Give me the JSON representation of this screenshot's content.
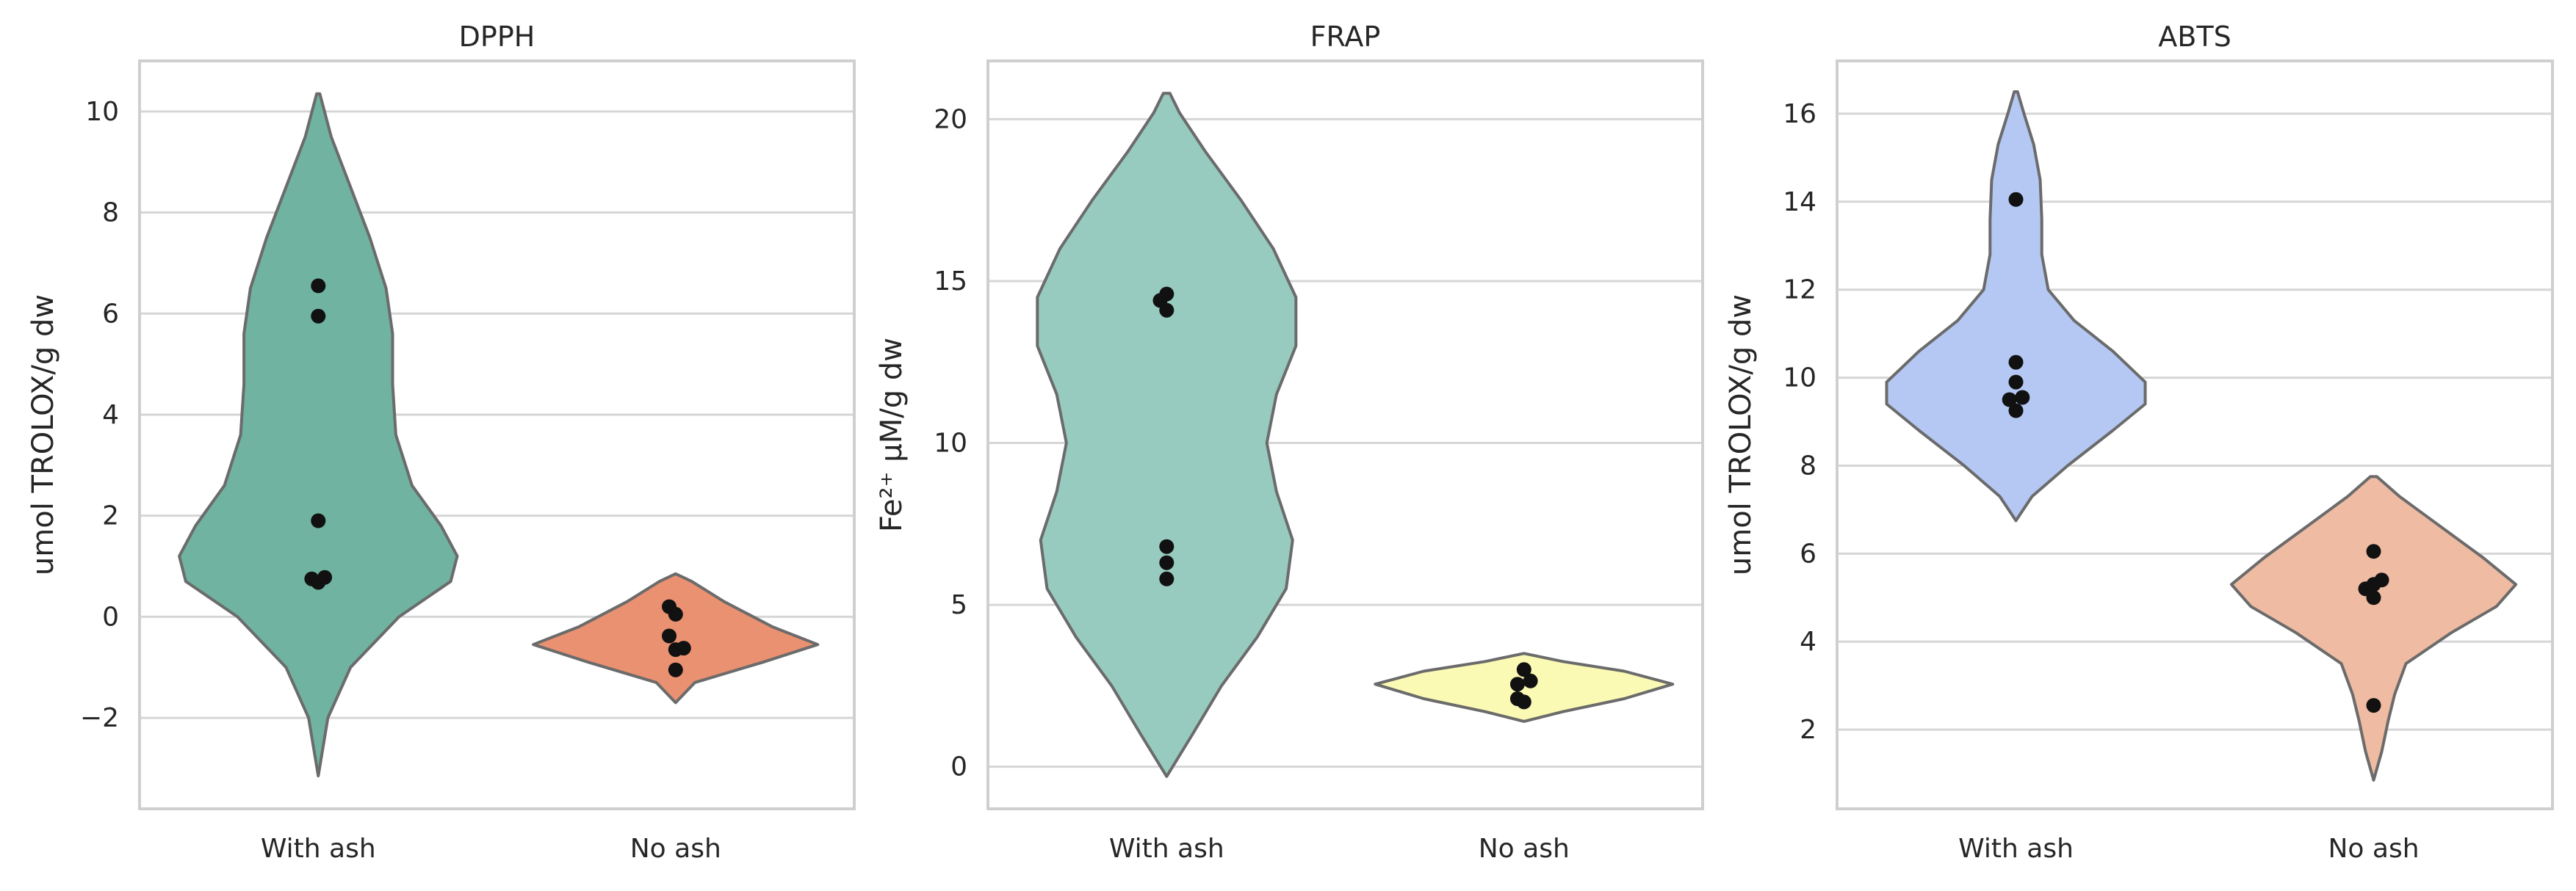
{
  "chart_data": [
    {
      "type": "violin",
      "title": "DPPH",
      "xlabel": "",
      "ylabel": "umol TROLOX/g dw",
      "categories": [
        "With ash",
        "No ash"
      ],
      "ylim": [
        -3.8,
        11.0
      ],
      "yticks": [
        -2,
        0,
        2,
        4,
        6,
        8,
        10
      ],
      "ytick_labels": [
        "−2",
        "0",
        "2",
        "4",
        "6",
        "8",
        "10"
      ],
      "grid": true,
      "colors": [
        "#6fb3a0",
        "#e99170"
      ],
      "violins": [
        {
          "category": "With ash",
          "min": -3.15,
          "max": 10.35,
          "profile": [
            [
              -3.15,
              0.0
            ],
            [
              -2.0,
              0.06
            ],
            [
              -1.0,
              0.2
            ],
            [
              0.0,
              0.5
            ],
            [
              0.7,
              0.82
            ],
            [
              1.2,
              0.86
            ],
            [
              1.8,
              0.76
            ],
            [
              2.6,
              0.58
            ],
            [
              3.6,
              0.48
            ],
            [
              4.6,
              0.46
            ],
            [
              5.6,
              0.46
            ],
            [
              6.5,
              0.42
            ],
            [
              7.5,
              0.32
            ],
            [
              8.5,
              0.2
            ],
            [
              9.5,
              0.08
            ],
            [
              10.35,
              0.01
            ]
          ]
        },
        {
          "category": "No ash",
          "min": -1.7,
          "max": 0.85,
          "profile": [
            [
              -1.7,
              0.0
            ],
            [
              -1.3,
              0.12
            ],
            [
              -0.9,
              0.54
            ],
            [
              -0.55,
              0.88
            ],
            [
              -0.2,
              0.6
            ],
            [
              0.3,
              0.3
            ],
            [
              0.7,
              0.1
            ],
            [
              0.85,
              0.0
            ]
          ]
        }
      ],
      "points": [
        {
          "category": "With ash",
          "y": 6.55,
          "dx": 0.0
        },
        {
          "category": "With ash",
          "y": 5.95,
          "dx": 0.0
        },
        {
          "category": "With ash",
          "y": 1.9,
          "dx": 0.0
        },
        {
          "category": "With ash",
          "y": 0.75,
          "dx": -0.04
        },
        {
          "category": "With ash",
          "y": 0.68,
          "dx": 0.0
        },
        {
          "category": "With ash",
          "y": 0.78,
          "dx": 0.04
        },
        {
          "category": "No ash",
          "y": 0.2,
          "dx": -0.04
        },
        {
          "category": "No ash",
          "y": 0.05,
          "dx": 0.0
        },
        {
          "category": "No ash",
          "y": -0.38,
          "dx": -0.04
        },
        {
          "category": "No ash",
          "y": -0.65,
          "dx": 0.0
        },
        {
          "category": "No ash",
          "y": -0.62,
          "dx": 0.05
        },
        {
          "category": "No ash",
          "y": -1.05,
          "dx": 0.0
        }
      ]
    },
    {
      "type": "violin",
      "title": "FRAP",
      "xlabel": "",
      "ylabel": "Fe²⁺ μM/g dw",
      "categories": [
        "With ash",
        "No ash"
      ],
      "ylim": [
        -1.3,
        21.8
      ],
      "yticks": [
        0,
        5,
        10,
        15,
        20
      ],
      "ytick_labels": [
        "0",
        "5",
        "10",
        "15",
        "20"
      ],
      "grid": true,
      "colors": [
        "#97cbc0",
        "#fbfab4"
      ],
      "violins": [
        {
          "category": "With ash",
          "min": -0.3,
          "max": 20.8,
          "profile": [
            [
              -0.3,
              0.0
            ],
            [
              1.0,
              0.16
            ],
            [
              2.5,
              0.34
            ],
            [
              4.0,
              0.56
            ],
            [
              5.5,
              0.74
            ],
            [
              7.0,
              0.78
            ],
            [
              8.5,
              0.68
            ],
            [
              10.0,
              0.62
            ],
            [
              11.5,
              0.68
            ],
            [
              13.0,
              0.8
            ],
            [
              14.5,
              0.8
            ],
            [
              16.0,
              0.66
            ],
            [
              17.5,
              0.46
            ],
            [
              19.0,
              0.24
            ],
            [
              20.2,
              0.08
            ],
            [
              20.8,
              0.02
            ]
          ]
        },
        {
          "category": "No ash",
          "min": 1.4,
          "max": 3.5,
          "profile": [
            [
              1.4,
              0.0
            ],
            [
              1.7,
              0.24
            ],
            [
              2.1,
              0.62
            ],
            [
              2.55,
              0.92
            ],
            [
              2.95,
              0.62
            ],
            [
              3.25,
              0.24
            ],
            [
              3.5,
              0.0
            ]
          ]
        }
      ],
      "points": [
        {
          "category": "With ash",
          "y": 14.6,
          "dx": 0.0
        },
        {
          "category": "With ash",
          "y": 14.4,
          "dx": -0.04
        },
        {
          "category": "With ash",
          "y": 14.1,
          "dx": 0.0
        },
        {
          "category": "With ash",
          "y": 6.8,
          "dx": 0.0
        },
        {
          "category": "With ash",
          "y": 6.3,
          "dx": 0.0
        },
        {
          "category": "With ash",
          "y": 5.8,
          "dx": 0.0
        },
        {
          "category": "No ash",
          "y": 3.0,
          "dx": 0.0
        },
        {
          "category": "No ash",
          "y": 2.65,
          "dx": 0.04
        },
        {
          "category": "No ash",
          "y": 2.55,
          "dx": -0.04
        },
        {
          "category": "No ash",
          "y": 2.1,
          "dx": -0.04
        },
        {
          "category": "No ash",
          "y": 2.0,
          "dx": 0.0
        }
      ]
    },
    {
      "type": "violin",
      "title": "ABTS",
      "xlabel": "",
      "ylabel": "umol TROLOX/g dw",
      "categories": [
        "With ash",
        "No ash"
      ],
      "ylim": [
        0.2,
        17.2
      ],
      "yticks": [
        2,
        4,
        6,
        8,
        10,
        12,
        14,
        16
      ],
      "ytick_labels": [
        "2",
        "4",
        "6",
        "8",
        "10",
        "12",
        "14",
        "16"
      ],
      "grid": true,
      "colors": [
        "#b4c8f3",
        "#efbba2"
      ],
      "violins": [
        {
          "category": "With ash",
          "min": 6.75,
          "max": 16.5,
          "profile": [
            [
              6.75,
              0.0
            ],
            [
              7.3,
              0.1
            ],
            [
              8.0,
              0.32
            ],
            [
              8.8,
              0.6
            ],
            [
              9.4,
              0.8
            ],
            [
              9.9,
              0.8
            ],
            [
              10.6,
              0.6
            ],
            [
              11.3,
              0.36
            ],
            [
              12.0,
              0.2
            ],
            [
              12.8,
              0.16
            ],
            [
              13.6,
              0.16
            ],
            [
              14.5,
              0.15
            ],
            [
              15.3,
              0.11
            ],
            [
              16.0,
              0.05
            ],
            [
              16.5,
              0.01
            ]
          ]
        },
        {
          "category": "No ash",
          "min": 0.85,
          "max": 7.75,
          "profile": [
            [
              0.85,
              0.0
            ],
            [
              1.5,
              0.05
            ],
            [
              2.2,
              0.09
            ],
            [
              2.8,
              0.13
            ],
            [
              3.5,
              0.2
            ],
            [
              4.2,
              0.48
            ],
            [
              4.8,
              0.76
            ],
            [
              5.3,
              0.88
            ],
            [
              5.9,
              0.68
            ],
            [
              6.6,
              0.42
            ],
            [
              7.3,
              0.16
            ],
            [
              7.75,
              0.02
            ]
          ]
        }
      ],
      "points": [
        {
          "category": "With ash",
          "y": 14.05,
          "dx": 0.0
        },
        {
          "category": "With ash",
          "y": 10.35,
          "dx": 0.0
        },
        {
          "category": "With ash",
          "y": 9.9,
          "dx": 0.0
        },
        {
          "category": "With ash",
          "y": 9.55,
          "dx": 0.04
        },
        {
          "category": "With ash",
          "y": 9.5,
          "dx": -0.04
        },
        {
          "category": "With ash",
          "y": 9.25,
          "dx": 0.0
        },
        {
          "category": "No ash",
          "y": 6.05,
          "dx": 0.0
        },
        {
          "category": "No ash",
          "y": 5.4,
          "dx": 0.05
        },
        {
          "category": "No ash",
          "y": 5.3,
          "dx": 0.0
        },
        {
          "category": "No ash",
          "y": 5.2,
          "dx": -0.05
        },
        {
          "category": "No ash",
          "y": 5.0,
          "dx": 0.0
        },
        {
          "category": "No ash",
          "y": 2.55,
          "dx": 0.0
        }
      ]
    }
  ]
}
